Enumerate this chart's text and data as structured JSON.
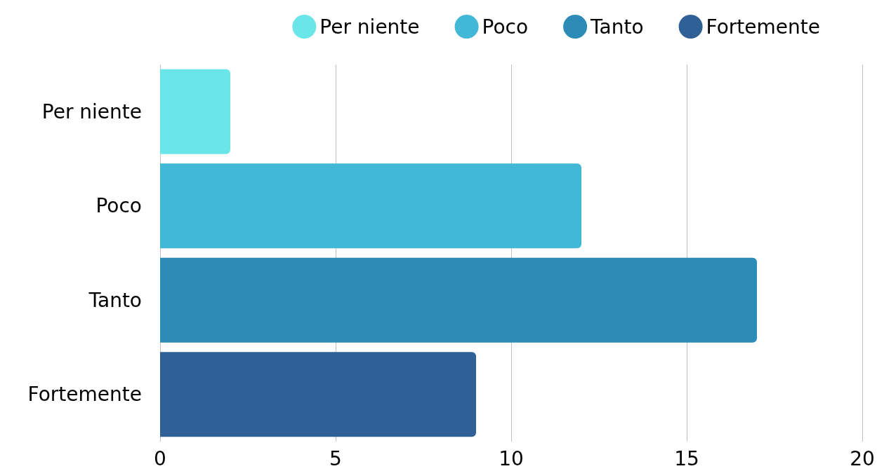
{
  "chart_data": {
    "type": "bar",
    "orientation": "horizontal",
    "categories": [
      "Per niente",
      "Poco",
      "Tanto",
      "Fortemente"
    ],
    "series": [
      {
        "name": "Per niente",
        "color": "#6ae5e8",
        "values": [
          2,
          null,
          null,
          null
        ]
      },
      {
        "name": "Poco",
        "color": "#43b7d6",
        "values": [
          null,
          12,
          null,
          null
        ]
      },
      {
        "name": "Tanto",
        "color": "#2d8bb8",
        "values": [
          null,
          null,
          17,
          null
        ]
      },
      {
        "name": "Fortemente",
        "color": "#2f6096",
        "values": [
          null,
          null,
          null,
          9
        ]
      }
    ],
    "xlim": [
      0,
      20
    ],
    "xticks": [
      0,
      5,
      10,
      15,
      20
    ],
    "grid": "x",
    "legend": "top"
  }
}
